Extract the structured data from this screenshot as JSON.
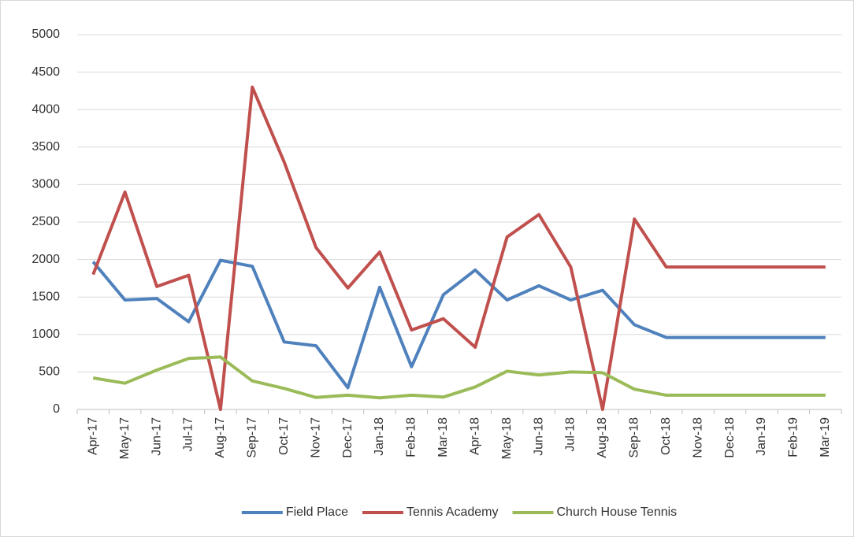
{
  "chart_data": {
    "type": "line",
    "categories": [
      "Apr-17",
      "May-17",
      "Jun-17",
      "Jul-17",
      "Aug-17",
      "Sep-17",
      "Oct-17",
      "Nov-17",
      "Dec-17",
      "Jan-18",
      "Feb-18",
      "Mar-18",
      "Apr-18",
      "May-18",
      "Jun-18",
      "Jul-18",
      "Aug-18",
      "Sep-18",
      "Oct-18",
      "Nov-18",
      "Dec-18",
      "Jan-19",
      "Feb-19",
      "Mar-19"
    ],
    "series": [
      {
        "name": "Field Place",
        "color": "#4f81bd",
        "values": [
          1970,
          1460,
          1480,
          1170,
          1990,
          1910,
          900,
          850,
          290,
          1630,
          570,
          1530,
          1860,
          1460,
          1650,
          1460,
          1590,
          1130,
          960,
          960,
          960,
          960,
          960,
          960
        ]
      },
      {
        "name": "Tennis Academy",
        "color": "#c0504d",
        "values": [
          1800,
          2900,
          1640,
          1790,
          0,
          4300,
          3300,
          2160,
          1620,
          2100,
          1060,
          1210,
          830,
          2300,
          2600,
          1900,
          0,
          2540,
          1900,
          1900,
          1900,
          1900,
          1900,
          1900
        ]
      },
      {
        "name": "Church House Tennis",
        "color": "#9bbb59",
        "values": [
          420,
          350,
          525,
          680,
          700,
          380,
          280,
          160,
          190,
          155,
          190,
          165,
          300,
          510,
          460,
          500,
          490,
          270,
          190,
          190,
          190,
          190,
          190,
          190
        ]
      }
    ],
    "ylim": [
      0,
      5000
    ],
    "yticks": [
      0,
      500,
      1000,
      1500,
      2000,
      2500,
      3000,
      3500,
      4000,
      4500,
      5000
    ],
    "grid": true,
    "legend": "bottom"
  }
}
